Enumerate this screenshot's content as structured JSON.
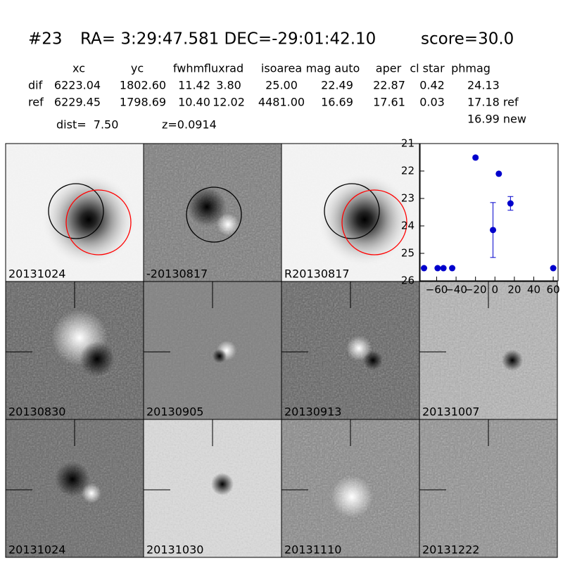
{
  "header": {
    "id": "#23",
    "coords": "RA= 3:29:47.581 DEC=-29:01:42.10",
    "score": "score=30.0"
  },
  "table": {
    "columns": [
      "xc",
      "yc",
      "fwhm",
      "fluxrad",
      "isoarea",
      "mag auto",
      "aper",
      "cl star",
      "phmag"
    ],
    "rows": [
      {
        "label": "dif",
        "cells": [
          "6223.04",
          "1802.60",
          "11.42",
          "3.80",
          "25.00",
          "22.49",
          "22.87",
          "0.42",
          "24.13"
        ]
      },
      {
        "label": "ref",
        "cells": [
          "6229.45",
          "1798.69",
          "10.40",
          "12.02",
          "4481.00",
          "16.69",
          "17.61",
          "0.03",
          "17.18 ref"
        ]
      }
    ],
    "extra": "16.99 new",
    "dist": "dist=  7.50",
    "z": "z=0.0914"
  },
  "panels": [
    {
      "label": "20131024"
    },
    {
      "label": "-20130817"
    },
    {
      "label": "R20130817"
    },
    {
      "label": "20130830"
    },
    {
      "label": "20130905"
    },
    {
      "label": "20130913"
    },
    {
      "label": "20131007"
    },
    {
      "label": "20131024",
      "label_color": "#ff0000"
    },
    {
      "label": "20131030"
    },
    {
      "label": "20131110"
    },
    {
      "label": "20131222"
    }
  ],
  "chart_data": {
    "type": "scatter",
    "color": "#0000cc",
    "x": [
      -73,
      -59,
      -53,
      -44,
      -20,
      -2,
      4,
      16,
      60
    ],
    "values": [
      25.54,
      25.54,
      25.54,
      25.54,
      21.51,
      24.15,
      22.1,
      23.18,
      25.54
    ],
    "errors": [
      null,
      null,
      null,
      null,
      0.05,
      1.0,
      null,
      0.25,
      null
    ],
    "xlim": [
      -77,
      65
    ],
    "ylim": [
      21,
      26
    ],
    "y_inverted": true,
    "xticks": [
      {
        "value": -60,
        "label": "−60"
      },
      {
        "value": -40,
        "label": "−40"
      },
      {
        "value": -20,
        "label": "−20"
      },
      0,
      20,
      40,
      60
    ],
    "yticks": [
      21,
      22,
      23,
      24,
      25,
      26
    ]
  }
}
